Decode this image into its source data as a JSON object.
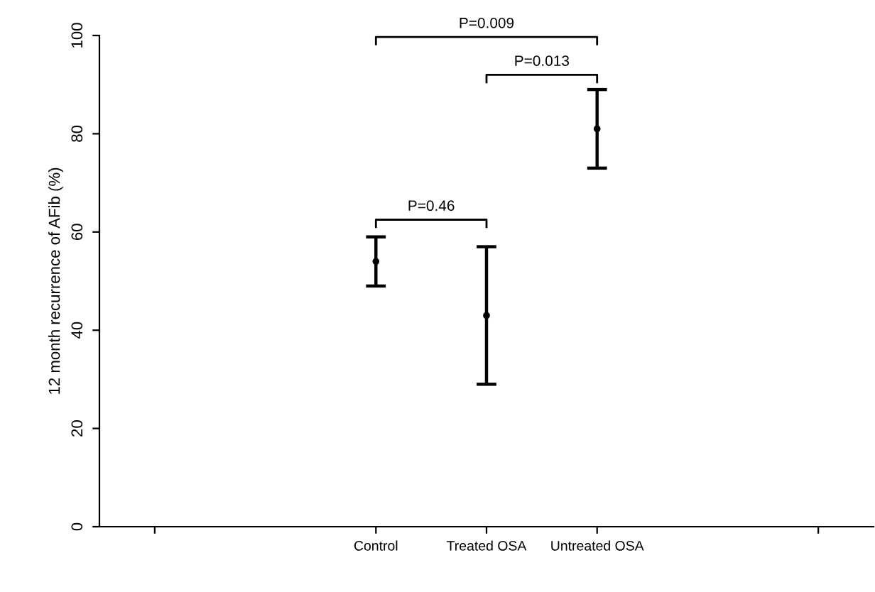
{
  "chart_data": {
    "type": "scatter",
    "ylabel": "12 month recurrence of AFib (%)",
    "categories": [
      null,
      null,
      "Control",
      "Treated OSA",
      "Untreated OSA",
      null,
      null
    ],
    "series": [
      {
        "color": "#000000",
        "values": [
          null,
          null,
          54,
          43,
          81,
          null,
          null
        ],
        "errors": [
          null,
          null,
          [
            49,
            59
          ],
          [
            29,
            57
          ],
          [
            73,
            89
          ],
          null,
          null
        ]
      }
    ],
    "marker": "circle",
    "ylim": [
      0,
      100
    ],
    "yticks": [
      0,
      20,
      40,
      60,
      80,
      100
    ],
    "annotations": [
      "P=0.009",
      "P=0.013",
      "P=0.46"
    ],
    "grid": false,
    "legend": false
  }
}
